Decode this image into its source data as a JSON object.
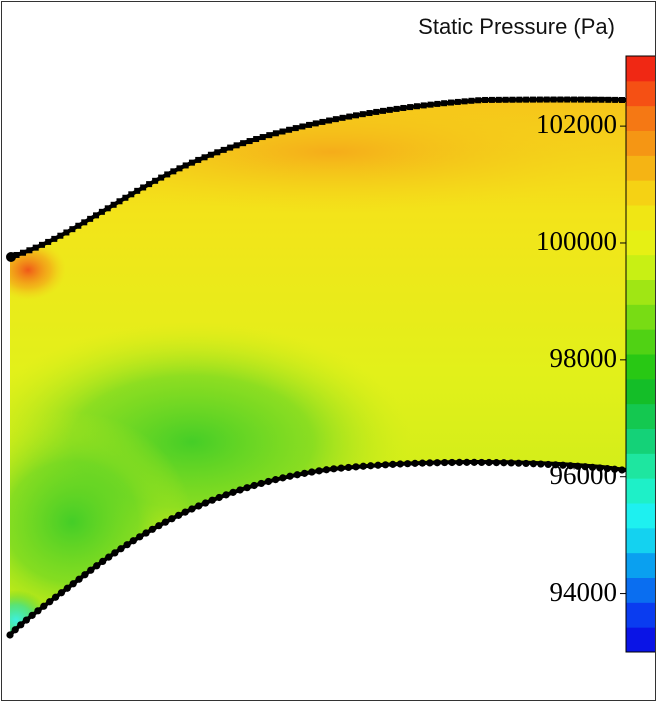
{
  "colorbar": {
    "title": "Static Pressure (Pa)",
    "min": 93000,
    "max": 103200,
    "ticks": [
      {
        "value": 102000,
        "label": "102000"
      },
      {
        "value": 100000,
        "label": "100000"
      },
      {
        "value": 98000,
        "label": "98000"
      },
      {
        "value": 96000,
        "label": "96000"
      },
      {
        "value": 94000,
        "label": "94000"
      }
    ],
    "band_colors": [
      "#0a14e6",
      "#0a3cf0",
      "#0a6ef0",
      "#0aa0f0",
      "#14d2f0",
      "#1ef0f0",
      "#1ef0c8",
      "#1ee6a0",
      "#14d278",
      "#14c850",
      "#14be28",
      "#28c814",
      "#50d214",
      "#78dc14",
      "#a0e614",
      "#c8f014",
      "#e6f014",
      "#f0e614",
      "#f5d214",
      "#f5b414",
      "#f59614",
      "#f57814",
      "#f55014",
      "#f02814"
    ]
  },
  "field": {
    "colors": {
      "high_orange": "#f7b01a",
      "max_red": "#f06018",
      "mid_yellow": "#f2ea1a",
      "low_green": "#3dcc28",
      "min_cyan": "#3ef0e0"
    },
    "marker_color": "#000000"
  }
}
